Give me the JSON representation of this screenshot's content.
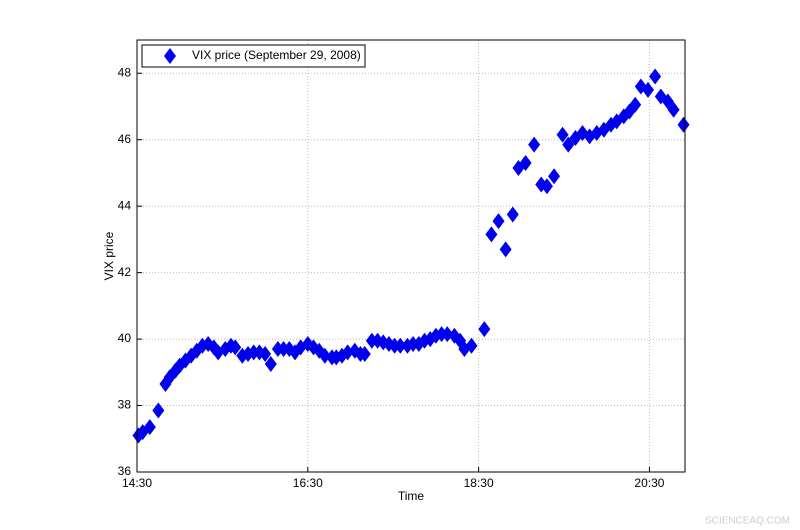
{
  "chart_data": {
    "type": "scatter",
    "xlabel": "Time",
    "ylabel": "VIX price",
    "series": [
      {
        "name": "VIX price (September 29, 2008)",
        "color": "#0000ee",
        "x": [
          871,
          874,
          879,
          885,
          890,
          893,
          897,
          900,
          904,
          908,
          912,
          916,
          920,
          924,
          927,
          932,
          936,
          939,
          944,
          948,
          952,
          956,
          960,
          964,
          969,
          973,
          977,
          981,
          985,
          990,
          994,
          998,
          1002,
          1007,
          1010,
          1014,
          1018,
          1023,
          1027,
          1030,
          1035,
          1039,
          1043,
          1047,
          1051,
          1055,
          1060,
          1064,
          1068,
          1072,
          1076,
          1080,
          1084,
          1088,
          1093,
          1097,
          1100,
          1105,
          1114,
          1119,
          1124,
          1129,
          1134,
          1138,
          1143,
          1149,
          1154,
          1158,
          1163,
          1169,
          1173,
          1178,
          1183,
          1188,
          1193,
          1198,
          1203,
          1207,
          1212,
          1216,
          1220,
          1224,
          1229,
          1234,
          1238,
          1243,
          1247,
          1254
        ],
        "values": [
          37.1,
          37.2,
          37.35,
          37.85,
          38.65,
          38.85,
          39.05,
          39.2,
          39.35,
          39.5,
          39.65,
          39.8,
          39.85,
          39.75,
          39.6,
          39.7,
          39.8,
          39.75,
          39.5,
          39.55,
          39.6,
          39.6,
          39.55,
          39.25,
          39.7,
          39.7,
          39.7,
          39.6,
          39.75,
          39.85,
          39.75,
          39.65,
          39.5,
          39.45,
          39.45,
          39.5,
          39.6,
          39.65,
          39.55,
          39.55,
          39.95,
          39.95,
          39.9,
          39.85,
          39.8,
          39.8,
          39.8,
          39.85,
          39.85,
          39.95,
          40.0,
          40.1,
          40.15,
          40.15,
          40.1,
          39.95,
          39.7,
          39.8,
          40.3,
          43.15,
          43.55,
          42.7,
          43.75,
          45.15,
          45.3,
          45.85,
          44.65,
          44.6,
          44.9,
          46.15,
          45.85,
          46.05,
          46.2,
          46.1,
          46.2,
          46.3,
          46.45,
          46.55,
          46.7,
          46.85,
          47.05,
          47.6,
          47.5,
          47.9,
          47.3,
          47.15,
          46.9,
          46.45
        ]
      }
    ],
    "xlim": [
      870,
      1255
    ],
    "xticks": [
      {
        "value": 870,
        "label": "14:30"
      },
      {
        "value": 990,
        "label": "16:30"
      },
      {
        "value": 1110,
        "label": "18:30"
      },
      {
        "value": 1230,
        "label": "20:30"
      }
    ],
    "ylim": [
      36,
      49
    ],
    "yticks": [
      36,
      38,
      40,
      42,
      44,
      46,
      48
    ],
    "grid": true,
    "legend": "upper left"
  },
  "watermark": "SCIENCEAQ.COM"
}
